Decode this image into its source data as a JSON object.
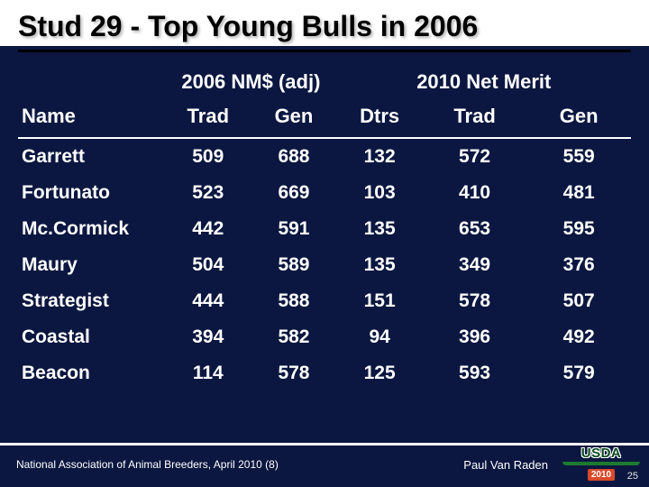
{
  "title": "Stud 29 - Top Young Bulls in 2006",
  "group_headers": {
    "left": "2006 NM$ (adj)",
    "right": "2010 Net Merit"
  },
  "columns": {
    "name": "Name",
    "trad06": "Trad",
    "gen06": "Gen",
    "dtrs": "Dtrs",
    "trad10": "Trad",
    "gen10": "Gen"
  },
  "rows": [
    {
      "name": "Garrett",
      "trad06": "509",
      "gen06": "688",
      "dtrs": "132",
      "trad10": "572",
      "gen10": "559"
    },
    {
      "name": "Fortunato",
      "trad06": "523",
      "gen06": "669",
      "dtrs": "103",
      "trad10": "410",
      "gen10": "481"
    },
    {
      "name": "Mc.Cormick",
      "trad06": "442",
      "gen06": "591",
      "dtrs": "135",
      "trad10": "653",
      "gen10": "595"
    },
    {
      "name": "Maury",
      "trad06": "504",
      "gen06": "589",
      "dtrs": "135",
      "trad10": "349",
      "gen10": "376"
    },
    {
      "name": "Strategist",
      "trad06": "444",
      "gen06": "588",
      "dtrs": "151",
      "trad10": "578",
      "gen10": "507"
    },
    {
      "name": "Coastal",
      "trad06": "394",
      "gen06": "582",
      "dtrs": "94",
      "trad10": "396",
      "gen10": "492"
    },
    {
      "name": "Beacon",
      "trad06": "114",
      "gen06": "578",
      "dtrs": "125",
      "trad10": "593",
      "gen10": "579"
    }
  ],
  "highlight_columns": [
    "gen06",
    "dtrs"
  ],
  "footer": {
    "left": "National Association of Animal Breeders, April 2010 (8)",
    "right": "Paul Van Raden"
  },
  "logo": {
    "text": "USDA",
    "year": "2010"
  },
  "page_number": "25",
  "colors": {
    "background": "#0b1740",
    "text": "#ffffff",
    "highlight": "#ffd93d",
    "title_text": "#000000",
    "title_bg": "#ffffff",
    "usda_green": "#1c7a2f",
    "badge": "#d94a2a"
  }
}
